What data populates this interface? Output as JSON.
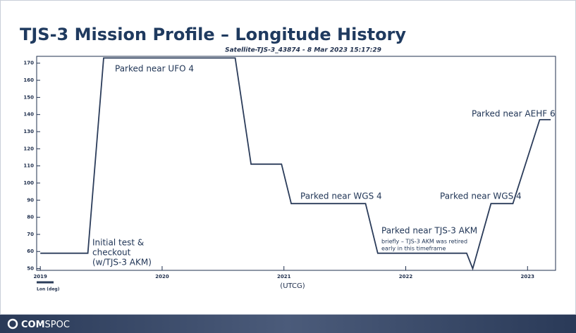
{
  "chart_data": {
    "type": "line",
    "title": "TJS-3 Mission Profile – Longitude History",
    "subtitle": "Satellite-TJS-3_43874 -  8 Mar 2023 15:17:29",
    "x_label": "(UTCG)",
    "xlim": [
      2018.97,
      2023.23
    ],
    "xticks": [
      2019,
      2020,
      2021,
      2022,
      2023
    ],
    "ylim": [
      49,
      174
    ],
    "yticks": [
      50,
      60,
      70,
      80,
      90,
      100,
      110,
      120,
      130,
      140,
      150,
      160,
      170
    ],
    "series": [
      {
        "name": "Lon (deg)",
        "color": "#2b3c5a",
        "x": [
          2019.0,
          2019.39,
          2019.52,
          2020.6,
          2020.73,
          2020.98,
          2021.06,
          2021.67,
          2021.77,
          2022.5,
          2022.55,
          2022.7,
          2022.88,
          2023.1,
          2023.19
        ],
        "values": [
          59,
          59,
          173,
          173,
          111,
          111,
          88,
          88,
          59,
          59,
          50,
          88,
          88,
          137,
          137
        ]
      }
    ],
    "annotations": [
      [
        "Parked near UFO 4"
      ],
      [
        "Initial test &",
        "checkout",
        "(w/TJS-3 AKM)"
      ],
      [
        "Parked near WGS 4"
      ],
      [
        "Parked near TJS-3 AKM"
      ],
      [
        "briefly – TJS-3 AKM was retired",
        "early in this timeframe"
      ],
      [
        "Parked near WGS 4"
      ],
      [
        "Parked near AEHF 6"
      ]
    ]
  },
  "footer": {
    "logo_bold": "COM",
    "logo_light": "SPOC"
  }
}
